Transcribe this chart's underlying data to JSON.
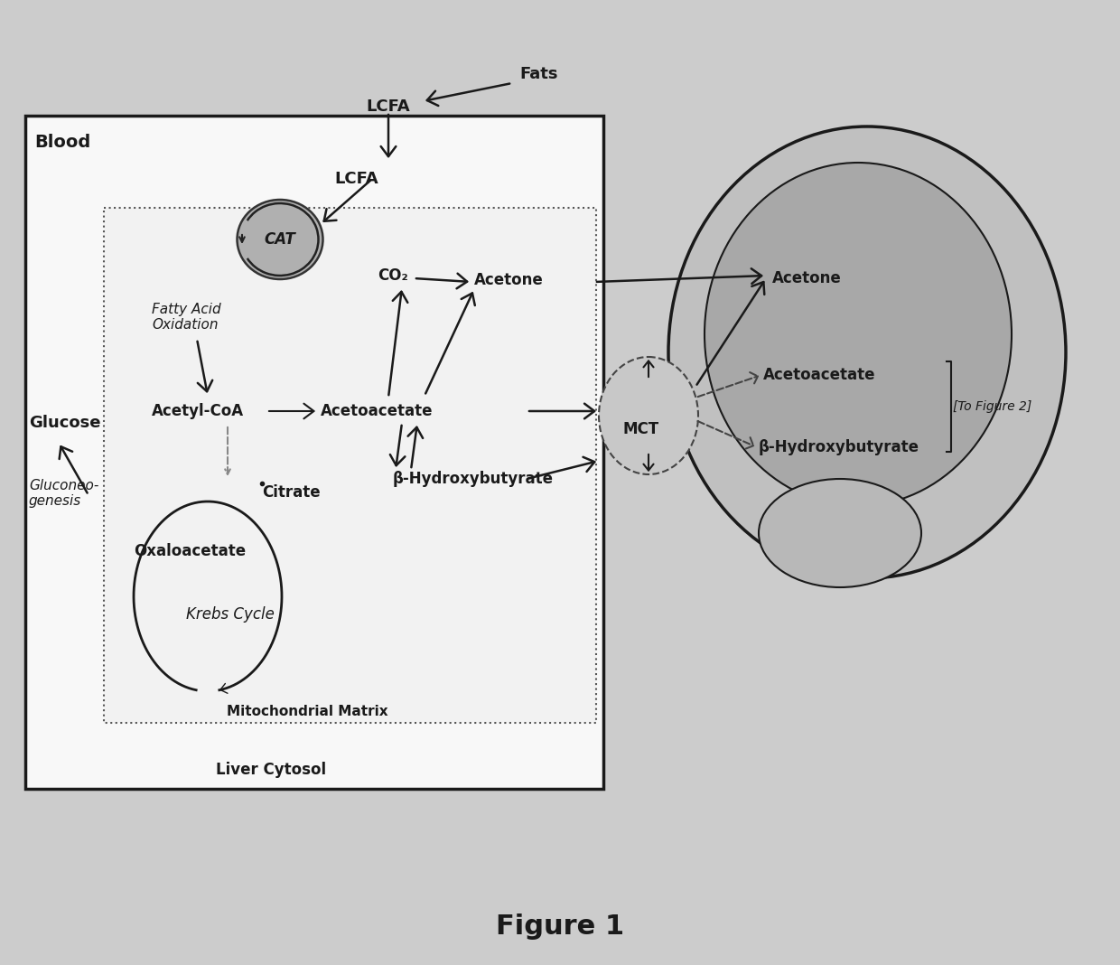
{
  "bg_color": "#cccccc",
  "liver_box_fc": "#f8f8f8",
  "mito_box_fc": "#f0f0f0",
  "brain_outer_fc": "#c0c0c0",
  "brain_inner_fc": "#a8a8a8",
  "brain_lobe_fc": "#b8b8b8",
  "mct_fc": "#c8c8c8",
  "cat_fc": "#b0b0b0",
  "title": "Figure 1",
  "title_fontsize": 22,
  "blood_label": "Blood",
  "fats_label": "Fats",
  "lcfa_label1": "LCFA",
  "lcfa_label2": "LCFA",
  "cat_label": "CAT",
  "fatty_acid_label": "Fatty Acid\nOxidation",
  "acetyl_coa_label": "Acetyl-CoA",
  "acetoacetate_label": "Acetoacetate",
  "co2_label": "CO₂",
  "acetone_label1": "Acetone",
  "acetone_label2": "Acetone",
  "acetoacetate_label2": "Acetoacetate",
  "bhb_label1": "β-Hydroxybutyrate",
  "bhb_label2": "β-Hydroxybutyrate",
  "glucose_label": "Glucose",
  "gluconeo_label": "Gluconeo-\ngenesis",
  "citrate_label": "Citrate",
  "oxaloacetate_label": "Oxaloacetate",
  "krebs_label": "Krebs Cycle",
  "mito_matrix_label": "Mitochondrial Matrix",
  "liver_cytosol_label": "Liver Cytosol",
  "mct_label": "MCT",
  "to_figure2_label": "[To Figure 2]"
}
